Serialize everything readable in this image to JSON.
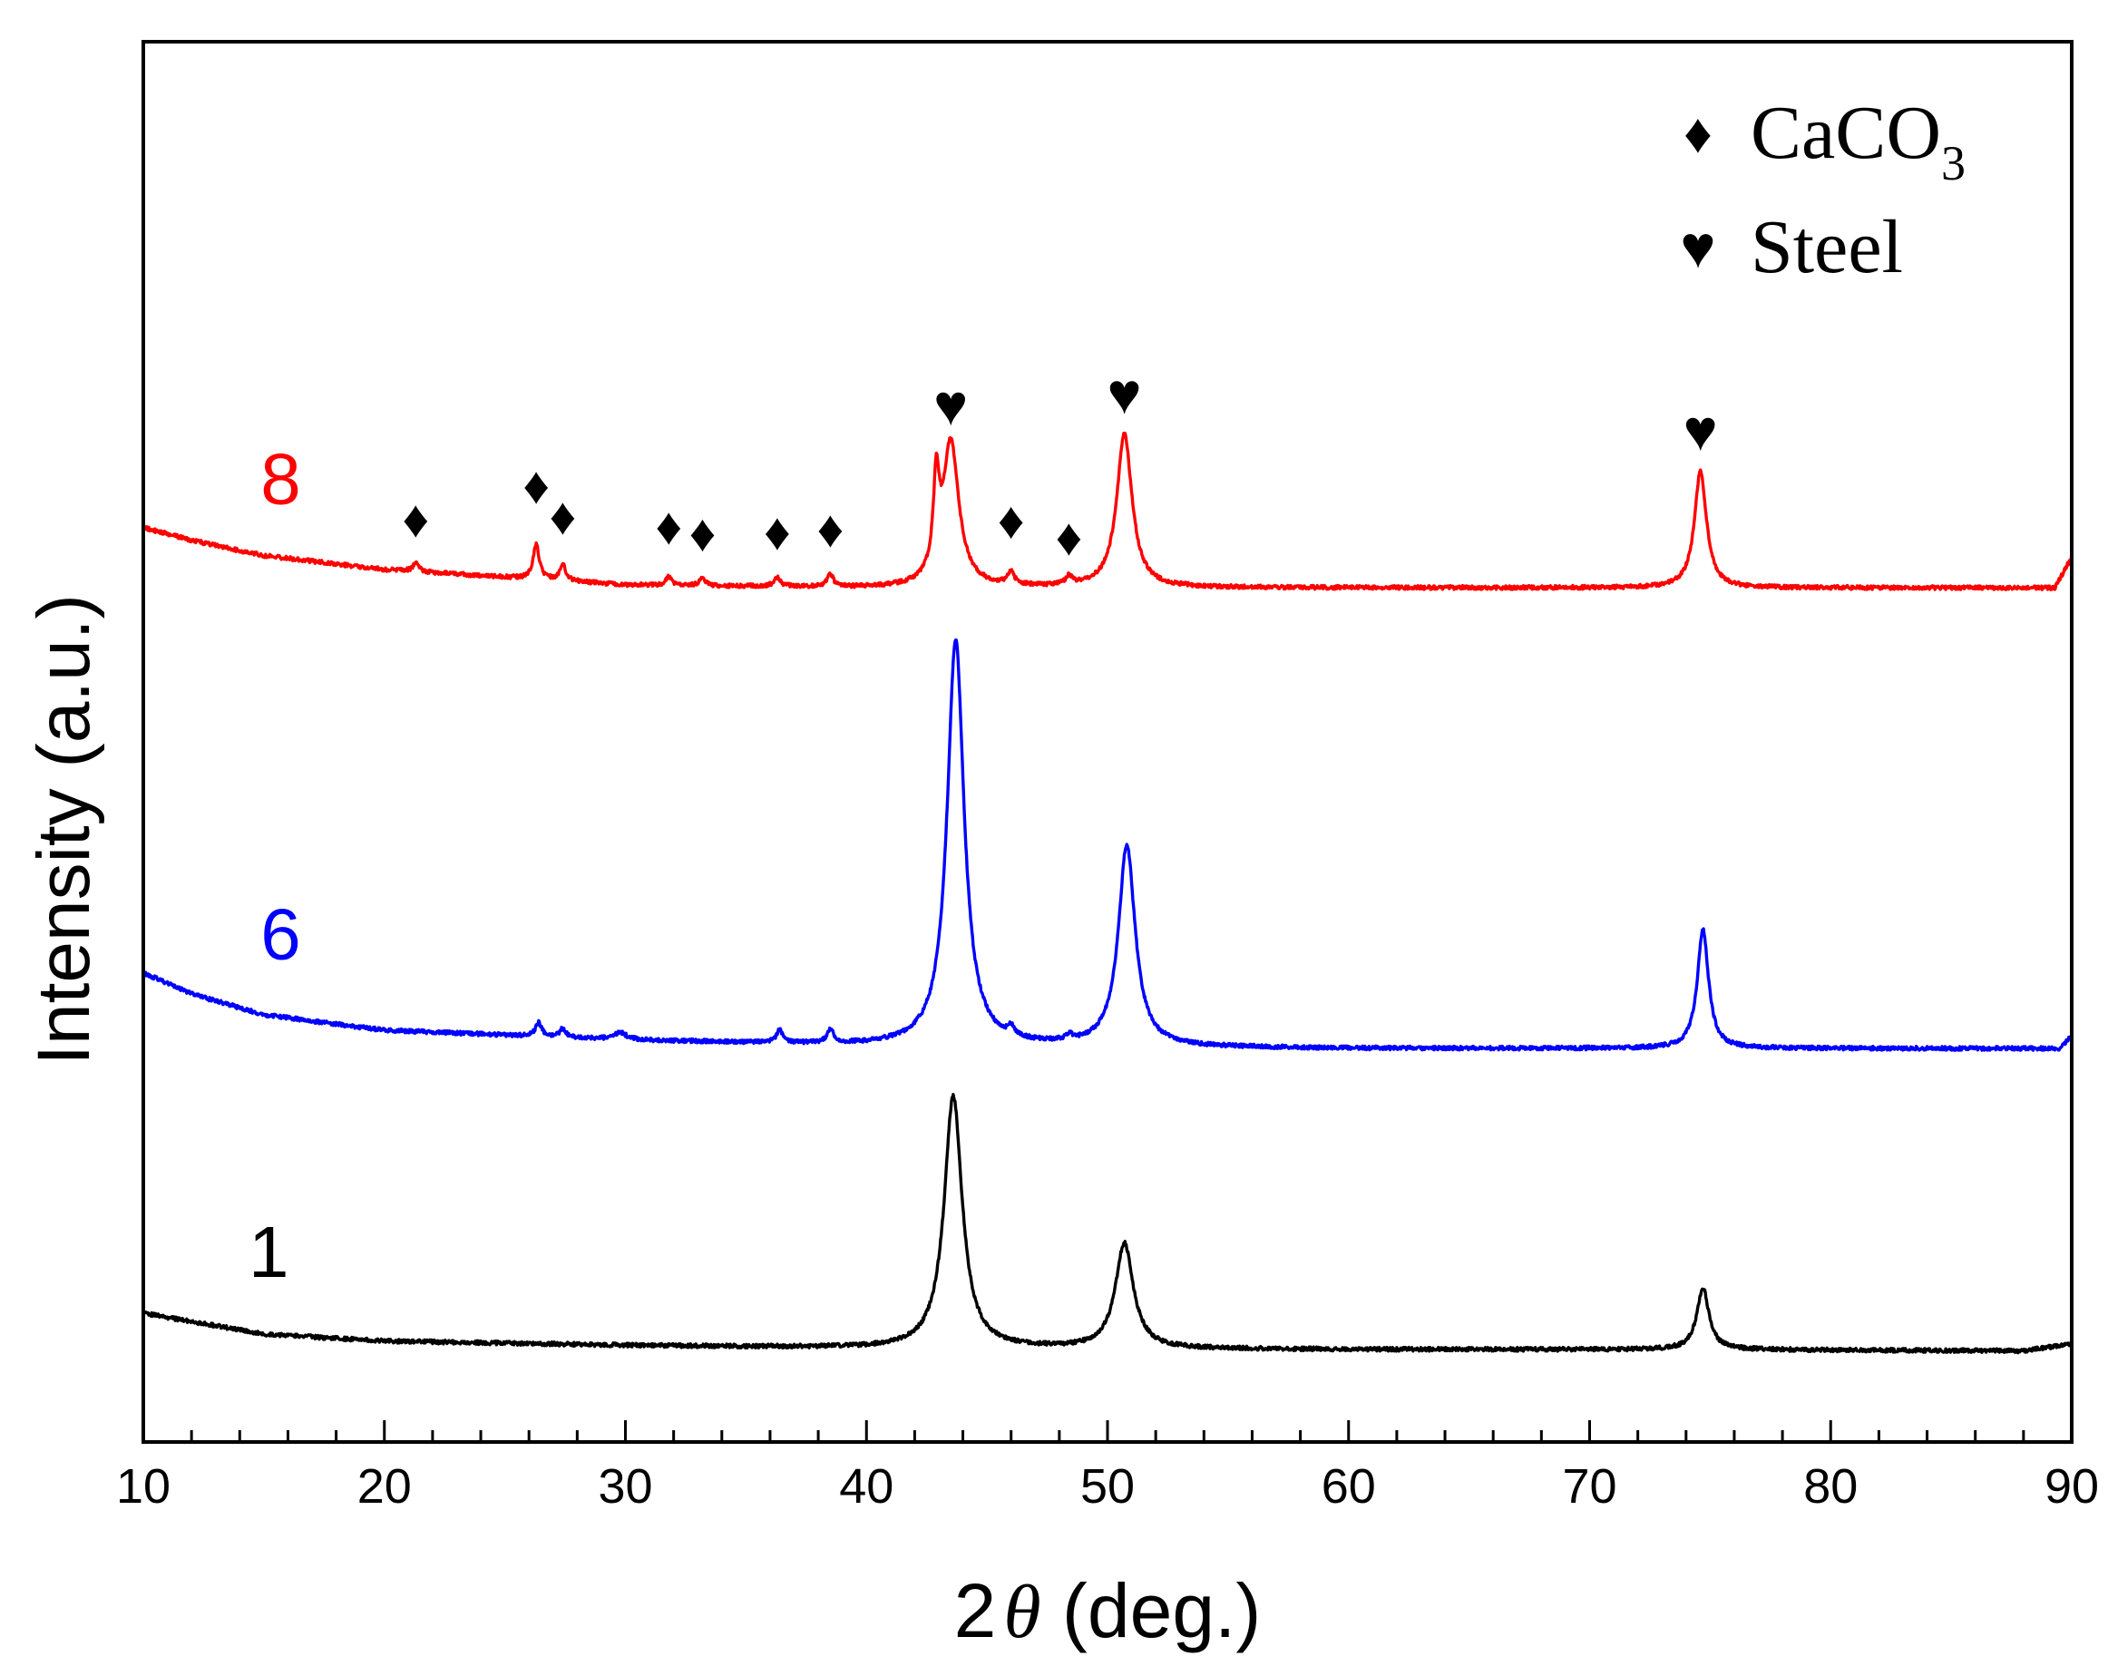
{
  "chart_data": {
    "type": "line",
    "title": "",
    "xlabel_prefix": "2",
    "xlabel_symbol": "θ",
    "xlabel_suffix": " (deg.)",
    "ylabel": "Intensity (a.u.)",
    "xlim": [
      10,
      90
    ],
    "ylim": [
      0,
      100
    ],
    "x_ticks": [
      10,
      20,
      30,
      40,
      50,
      60,
      70,
      80,
      90
    ],
    "x_tick_labels": [
      "10",
      "20",
      "30",
      "40",
      "50",
      "60",
      "70",
      "80",
      "90"
    ],
    "x_minor_step": 2,
    "y_ticks_shown": false,
    "series": [
      {
        "name": "1",
        "color": "#000000",
        "baseline": [
          [
            10,
            9.2
          ],
          [
            15,
            7.7
          ],
          [
            20,
            7.2
          ],
          [
            30,
            6.9
          ],
          [
            40,
            6.7
          ],
          [
            60,
            6.6
          ],
          [
            75,
            6.6
          ],
          [
            88,
            6.5
          ],
          [
            90,
            7.0
          ]
        ],
        "peaks": [
          [
            43.6,
            18.0,
            0.45
          ],
          [
            50.7,
            7.5,
            0.45
          ],
          [
            74.7,
            4.4,
            0.3
          ]
        ],
        "label_position": {
          "x": 15.2,
          "y": 11.8
        }
      },
      {
        "name": "6",
        "color": "#0000ff",
        "baseline": [
          [
            10,
            33.5
          ],
          [
            12,
            32.0
          ],
          [
            15,
            30.5
          ],
          [
            20,
            29.4
          ],
          [
            30,
            28.7
          ],
          [
            40,
            28.3
          ],
          [
            60,
            28.1
          ],
          [
            80,
            28.1
          ],
          [
            89.5,
            28.1
          ],
          [
            90,
            29.0
          ]
        ],
        "peaks": [
          [
            43.7,
            29.0,
            0.42
          ],
          [
            50.8,
            14.3,
            0.42
          ],
          [
            74.7,
            8.5,
            0.28
          ],
          [
            26.4,
            1.0,
            0.15
          ],
          [
            27.4,
            0.6,
            0.15
          ],
          [
            29.8,
            0.5,
            0.3
          ],
          [
            36.4,
            0.9,
            0.15
          ],
          [
            38.5,
            1.0,
            0.15
          ],
          [
            46.0,
            0.6,
            0.15
          ],
          [
            48.4,
            0.4,
            0.15
          ]
        ],
        "label_position": {
          "x": 15.7,
          "y": 34.5
        }
      },
      {
        "name": "8",
        "color": "#ff0000",
        "baseline": [
          [
            10,
            65.3
          ],
          [
            12,
            64.4
          ],
          [
            15,
            63.3
          ],
          [
            20,
            62.3
          ],
          [
            30,
            61.2
          ],
          [
            40,
            61.0
          ],
          [
            60,
            61.0
          ],
          [
            80,
            61.0
          ],
          [
            89.3,
            61.0
          ],
          [
            90,
            63.2
          ]
        ],
        "peaks": [
          [
            43.5,
            10.3,
            0.4
          ],
          [
            42.9,
            6.3,
            0.15
          ],
          [
            50.7,
            11.0,
            0.38
          ],
          [
            74.6,
            8.3,
            0.3
          ],
          [
            21.3,
            0.6,
            0.15
          ],
          [
            26.3,
            2.5,
            0.15
          ],
          [
            27.4,
            1.2,
            0.15
          ],
          [
            31.8,
            0.6,
            0.15
          ],
          [
            33.2,
            0.5,
            0.15
          ],
          [
            36.3,
            0.7,
            0.15
          ],
          [
            38.5,
            0.9,
            0.15
          ],
          [
            46.0,
            1.0,
            0.15
          ],
          [
            48.4,
            0.6,
            0.15
          ]
        ],
        "label_position": {
          "x": 15.7,
          "y": 67.0
        }
      }
    ],
    "markers": [
      {
        "symbol": "♦",
        "phase": "CaCO3",
        "x": 21.3,
        "y": 65.8
      },
      {
        "symbol": "♦",
        "phase": "CaCO3",
        "x": 26.3,
        "y": 68.2
      },
      {
        "symbol": "♦",
        "phase": "CaCO3",
        "x": 27.4,
        "y": 66.0
      },
      {
        "symbol": "♦",
        "phase": "CaCO3",
        "x": 31.8,
        "y": 65.3
      },
      {
        "symbol": "♦",
        "phase": "CaCO3",
        "x": 33.2,
        "y": 64.8
      },
      {
        "symbol": "♦",
        "phase": "CaCO3",
        "x": 36.3,
        "y": 64.9
      },
      {
        "symbol": "♦",
        "phase": "CaCO3",
        "x": 38.5,
        "y": 65.1
      },
      {
        "symbol": "♥",
        "phase": "Steel",
        "x": 43.5,
        "y": 73.8
      },
      {
        "symbol": "♦",
        "phase": "CaCO3",
        "x": 46.0,
        "y": 65.7
      },
      {
        "symbol": "♦",
        "phase": "CaCO3",
        "x": 48.4,
        "y": 64.5
      },
      {
        "symbol": "♥",
        "phase": "Steel",
        "x": 50.7,
        "y": 74.6
      },
      {
        "symbol": "♥",
        "phase": "Steel",
        "x": 74.6,
        "y": 72.0
      }
    ],
    "legend": {
      "placement": "top-right",
      "entries": [
        {
          "symbol": "♦",
          "label": "CaCO",
          "subscript": "3"
        },
        {
          "symbol": "♥",
          "label": "Steel",
          "subscript": ""
        }
      ]
    }
  }
}
